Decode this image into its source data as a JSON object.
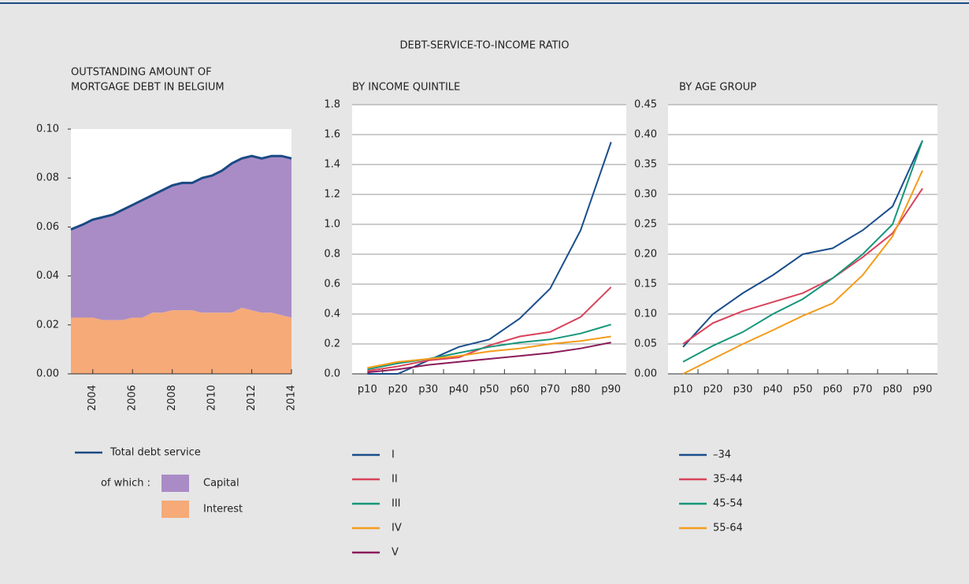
{
  "title": "DEBT-SERVICE-TO-INCOME RATIO",
  "chart_data": [
    {
      "type": "area",
      "title": [
        "OUTSTANDING AMOUNT OF",
        "MORTGAGE DEBT IN BELGIUM"
      ],
      "x": [
        2002.9,
        2003.5,
        2004,
        2004.5,
        2005,
        2005.5,
        2006,
        2006.5,
        2007,
        2007.5,
        2008,
        2008.5,
        2009,
        2009.5,
        2010,
        2010.5,
        2011,
        2011.5,
        2012,
        2012.5,
        2013,
        2013.5,
        2014
      ],
      "xlim": [
        2002.9,
        2014
      ],
      "xticks": [
        2004,
        2006,
        2008,
        2010,
        2012,
        2014
      ],
      "ylim": [
        0,
        0.1
      ],
      "yticks": [
        {
          "value": 0,
          "label": "0.00"
        },
        0.02,
        0.04,
        0.06,
        0.08,
        {
          "value": 0.1,
          "label": "0.10"
        }
      ],
      "legend_note": "of which :",
      "series": [
        {
          "name": "Interest",
          "kind": "area",
          "color": "#f5aa78",
          "values": [
            0.023,
            0.023,
            0.023,
            0.022,
            0.022,
            0.022,
            0.023,
            0.023,
            0.025,
            0.025,
            0.026,
            0.026,
            0.026,
            0.025,
            0.025,
            0.025,
            0.025,
            0.027,
            0.026,
            0.025,
            0.025,
            0.024,
            0.023
          ]
        },
        {
          "name": "Capital",
          "kind": "area",
          "color": "#a98cc6",
          "values": [
            0.036,
            0.038,
            0.04,
            0.042,
            0.043,
            0.045,
            0.046,
            0.048,
            0.048,
            0.05,
            0.051,
            0.052,
            0.052,
            0.055,
            0.056,
            0.058,
            0.061,
            0.061,
            0.063,
            0.063,
            0.064,
            0.065,
            0.065
          ]
        },
        {
          "name": "Total debt service",
          "kind": "line",
          "color": "#1a4a84",
          "values": [
            0.059,
            0.061,
            0.063,
            0.064,
            0.065,
            0.067,
            0.069,
            0.071,
            0.073,
            0.075,
            0.077,
            0.078,
            0.078,
            0.08,
            0.081,
            0.083,
            0.086,
            0.088,
            0.089,
            0.088,
            0.089,
            0.089,
            0.088
          ]
        }
      ]
    },
    {
      "type": "line",
      "title": [
        "BY INCOME QUINTILE"
      ],
      "categories": [
        "p10",
        "p20",
        "p30",
        "p40",
        "p50",
        "p60",
        "p70",
        "p80",
        "p90"
      ],
      "ylim": [
        0,
        1.8
      ],
      "yticks": [
        {
          "value": 0,
          "label": "0.0"
        },
        0.2,
        0.4,
        0.6,
        0.8,
        {
          "value": 1,
          "label": "1.0"
        },
        1.2,
        1.4,
        1.6,
        1.8
      ],
      "grid": true,
      "series": [
        {
          "name": "I",
          "color": "#1a4e8c",
          "values": [
            0.0,
            0.0,
            0.09,
            0.18,
            0.23,
            0.37,
            0.57,
            0.96,
            1.55
          ]
        },
        {
          "name": "II",
          "color": "#d9435b",
          "values": [
            0.02,
            0.05,
            0.09,
            0.11,
            0.19,
            0.25,
            0.28,
            0.38,
            0.58
          ]
        },
        {
          "name": "III",
          "color": "#16967a",
          "values": [
            0.03,
            0.07,
            0.1,
            0.14,
            0.18,
            0.21,
            0.23,
            0.27,
            0.33
          ]
        },
        {
          "name": "IV",
          "color": "#f39c1a",
          "values": [
            0.04,
            0.08,
            0.1,
            0.12,
            0.15,
            0.17,
            0.2,
            0.22,
            0.25
          ]
        },
        {
          "name": "V",
          "color": "#8b1a5a",
          "values": [
            0.01,
            0.03,
            0.06,
            0.08,
            0.1,
            0.12,
            0.14,
            0.17,
            0.21
          ]
        }
      ]
    },
    {
      "type": "line",
      "title": [
        "BY AGE GROUP"
      ],
      "categories": [
        "p10",
        "p20",
        "p30",
        "p40",
        "p50",
        "p60",
        "p70",
        "p80",
        "p90"
      ],
      "ylim": [
        0,
        0.45
      ],
      "yticks": [
        {
          "value": 0,
          "label": "0.00"
        },
        0.05,
        {
          "value": 0.1,
          "label": "0.10"
        },
        0.15,
        {
          "value": 0.2,
          "label": "0.20"
        },
        0.25,
        {
          "value": 0.3,
          "label": "0.30"
        },
        0.35,
        {
          "value": 0.4,
          "label": "0.40"
        },
        0.45
      ],
      "grid": true,
      "series": [
        {
          "name": "–34",
          "color": "#1a4e8c",
          "values": [
            0.045,
            0.1,
            0.135,
            0.165,
            0.2,
            0.21,
            0.24,
            0.28,
            0.39
          ]
        },
        {
          "name": "35-44",
          "color": "#d9435b",
          "values": [
            0.05,
            0.085,
            0.105,
            0.12,
            0.135,
            0.16,
            0.195,
            0.235,
            0.31
          ]
        },
        {
          "name": "45-54",
          "color": "#16967a",
          "values": [
            0.02,
            0.047,
            0.07,
            0.1,
            0.125,
            0.16,
            0.2,
            0.25,
            0.39
          ]
        },
        {
          "name": "55-64",
          "color": "#f39c1a",
          "values": [
            0.0,
            0.025,
            0.05,
            0.073,
            0.097,
            0.118,
            0.165,
            0.23,
            0.34
          ]
        }
      ]
    }
  ]
}
